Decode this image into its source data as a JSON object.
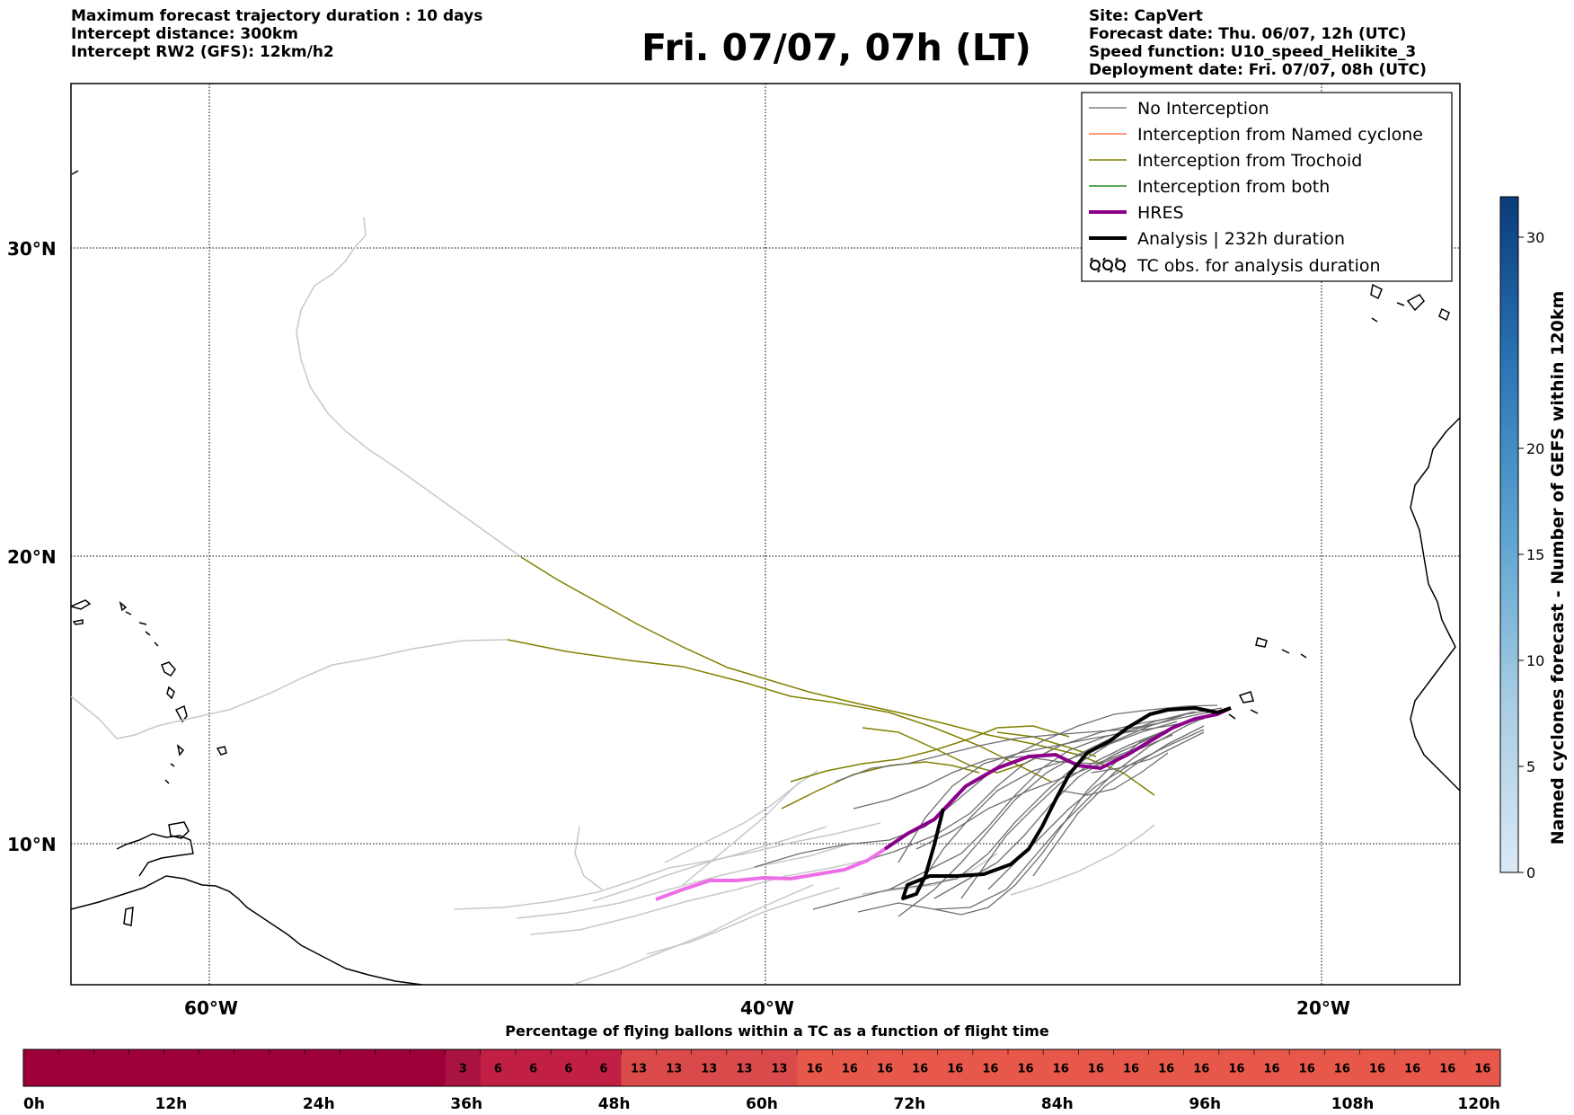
{
  "header": {
    "left": [
      "Maximum forecast trajectory duration : 10 days",
      "Intercept distance: 300km",
      "Intercept RW2 (GFS):  12km/h2"
    ],
    "title": "Fri. 07/07, 07h (LT)",
    "right": [
      "Site: CapVert",
      "Forecast date: Thu. 06/07, 12h (UTC)",
      "Speed function: U10_speed_Helikite_3",
      "Deployment date: Fri. 07/07, 08h (UTC)"
    ]
  },
  "map": {
    "lat_labels": [
      "30°N",
      "20°N",
      "10°N"
    ],
    "lon_labels": [
      "60°W",
      "40°W",
      "20°W"
    ],
    "legend": [
      {
        "label": "No Interception",
        "color": "#808080"
      },
      {
        "label": "Interception from Named cyclone",
        "color": "#ff7f50"
      },
      {
        "label": "Interception from Trochoid",
        "color": "#808000"
      },
      {
        "label": "Interception from both",
        "color": "#228b22"
      },
      {
        "label": "HRES",
        "color": "#8b008b"
      },
      {
        "label": "Analysis | 232h duration",
        "color": "#000000"
      },
      {
        "label": "TC obs. for analysis duration",
        "color": "#000000",
        "icon": "cyclone-symbol-icon"
      }
    ]
  },
  "colorbar": {
    "label": "Named cyclones forecast - Number of GEFS within 120km",
    "ticks": [
      "0",
      "5",
      "10",
      "15",
      "20",
      "30"
    ]
  },
  "timebar": {
    "title": "Percentage of flying ballons within a TC as a function of flight time",
    "ticks": [
      "0h",
      "12h",
      "24h",
      "36h",
      "48h",
      "60h",
      "72h",
      "84h",
      "96h",
      "108h",
      "120h"
    ],
    "cells": [
      "",
      "",
      "",
      "",
      "",
      "",
      "",
      "",
      "",
      "",
      "",
      "",
      "3",
      "6",
      "6",
      "6",
      "6",
      "13",
      "13",
      "13",
      "13",
      "13",
      "16",
      "16",
      "16",
      "16",
      "16",
      "16",
      "16",
      "16",
      "16",
      "16",
      "16",
      "16",
      "16",
      "16",
      "16",
      "16",
      "16",
      "16",
      "16",
      "16"
    ]
  }
}
